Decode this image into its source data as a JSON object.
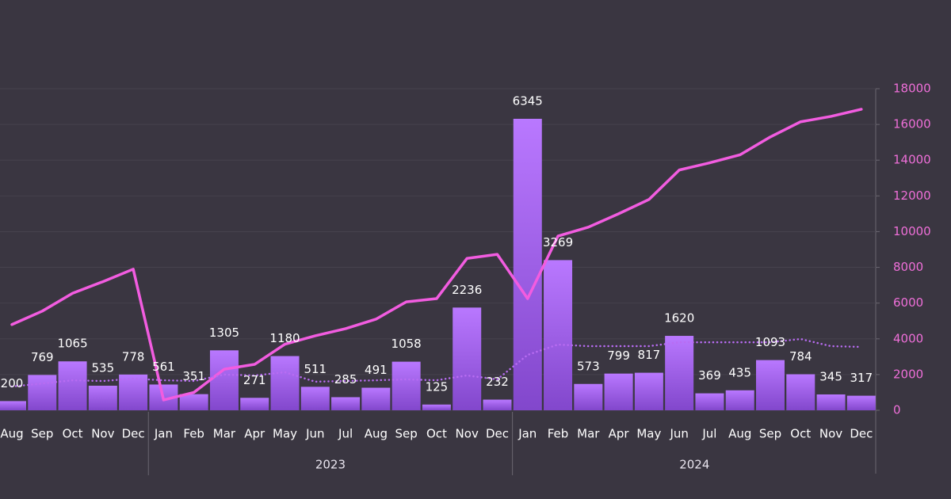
{
  "chart_data": {
    "type": "bar",
    "categories": [
      "Aug",
      "Sep",
      "Oct",
      "Nov",
      "Dec",
      "Jan",
      "Feb",
      "Mar",
      "Apr",
      "May",
      "Jun",
      "Jul",
      "Aug",
      "Sep",
      "Oct",
      "Nov",
      "Dec",
      "Jan",
      "Feb",
      "Mar",
      "Apr",
      "May",
      "Jun",
      "Jul",
      "Aug",
      "Sep",
      "Oct",
      "Nov",
      "Dec"
    ],
    "category_groups": [
      null,
      null,
      null,
      null,
      null,
      "2023",
      "2023",
      "2023",
      "2023",
      "2023",
      "2023",
      "2023",
      "2023",
      "2023",
      "2023",
      "2023",
      "2023",
      "2024",
      "2024",
      "2024",
      "2024",
      "2024",
      "2024",
      "2024",
      "2024",
      "2024",
      "2024",
      "2024",
      "2024"
    ],
    "series": [
      {
        "type": "bar",
        "color": "#a45ff0",
        "values": [
          200,
          769,
          1065,
          535,
          778,
          561,
          351,
          1305,
          271,
          1180,
          511,
          285,
          491,
          1058,
          125,
          2236,
          232,
          6345,
          3269,
          573,
          799,
          817,
          1620,
          369,
          435,
          1093,
          784,
          345,
          317
        ]
      },
      {
        "type": "line",
        "axis": "y2",
        "color": "#f25ce0",
        "values": [
          4800,
          5550,
          6550,
          7200,
          7900,
          580,
          1000,
          2300,
          2570,
          3700,
          4170,
          4570,
          5100,
          6070,
          6250,
          8500,
          8730,
          6250,
          9750,
          10250,
          11000,
          11800,
          13450,
          13850,
          14300,
          15300,
          16150,
          16450,
          16850
        ]
      },
      {
        "type": "line",
        "axis": "y2",
        "color": "#b86cf2",
        "style": "dotted",
        "values": [
          1330,
          1500,
          1680,
          1640,
          1770,
          1680,
          1640,
          2000,
          1950,
          2130,
          1600,
          1640,
          1680,
          1730,
          1680,
          1950,
          1730,
          3100,
          3680,
          3590,
          3590,
          3590,
          3810,
          3810,
          3810,
          3810,
          3990,
          3590,
          3550
        ]
      }
    ],
    "ylim": [
      0,
      7000
    ],
    "y2lim": [
      0,
      18000
    ],
    "y2ticks": [
      0,
      2000,
      4000,
      6000,
      8000,
      10000,
      12000,
      14000,
      16000,
      18000
    ],
    "grid": true
  }
}
